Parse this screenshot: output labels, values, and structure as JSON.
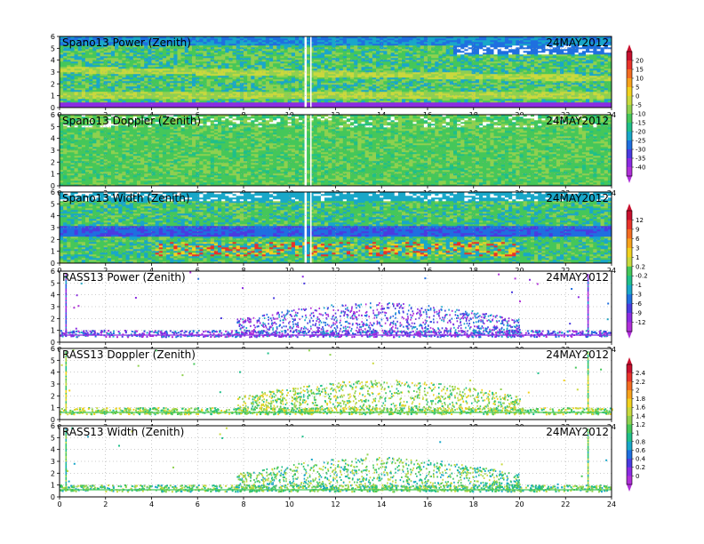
{
  "chart_data": [
    {
      "type": "heatmap",
      "title": "Spano13 Power (Zenith)",
      "date": "24MAY2012",
      "x_range": [
        0,
        24
      ],
      "y_range": [
        0,
        6
      ],
      "x_ticks": [
        "0",
        "2",
        "4",
        "6",
        "8",
        "10",
        "12",
        "14",
        "16",
        "18",
        "20",
        "22",
        "24"
      ],
      "y_ticks": [
        "0",
        "1",
        "2",
        "3",
        "4",
        "5",
        "6"
      ],
      "style": "profiler",
      "colorbar": "A"
    },
    {
      "type": "heatmap",
      "title": "Spano13 Doppler (Zenith)",
      "date": "24MAY2012",
      "x_range": [
        0,
        24
      ],
      "y_range": [
        0,
        6
      ],
      "x_ticks": [
        "0",
        "2",
        "4",
        "6",
        "8",
        "10",
        "12",
        "14",
        "16",
        "18",
        "20",
        "22",
        "24"
      ],
      "y_ticks": [
        "0",
        "1",
        "2",
        "3",
        "4",
        "5",
        "6"
      ],
      "style": "profiler",
      "colorbar": "A"
    },
    {
      "type": "heatmap",
      "title": "Spano13 Width (Zenith)",
      "date": "24MAY2012",
      "x_range": [
        0,
        24
      ],
      "y_range": [
        0,
        6
      ],
      "x_ticks": [
        "0",
        "2",
        "4",
        "6",
        "8",
        "10",
        "12",
        "14",
        "16",
        "18",
        "20",
        "22",
        "24"
      ],
      "y_ticks": [
        "0",
        "1",
        "2",
        "3",
        "4",
        "5",
        "6"
      ],
      "style": "profiler",
      "colorbar": "B"
    },
    {
      "type": "scatter",
      "title": "RASS13 Power (Zenith)",
      "date": "24MAY2012",
      "x_range": [
        0,
        24
      ],
      "y_range": [
        0,
        6
      ],
      "x_ticks": [
        "0",
        "2",
        "4",
        "6",
        "8",
        "10",
        "12",
        "14",
        "16",
        "18",
        "20",
        "22",
        "24"
      ],
      "y_ticks": [
        "0",
        "1",
        "2",
        "3",
        "4",
        "5",
        "6"
      ],
      "style": "rass",
      "colorbar": "B"
    },
    {
      "type": "scatter",
      "title": "RASS13 Doppler (Zenith)",
      "date": "24MAY2012",
      "x_range": [
        0,
        24
      ],
      "y_range": [
        0,
        6
      ],
      "x_ticks": [
        "0",
        "2",
        "4",
        "6",
        "8",
        "10",
        "12",
        "14",
        "16",
        "18",
        "20",
        "22",
        "24"
      ],
      "y_ticks": [
        "0",
        "1",
        "2",
        "3",
        "4",
        "5",
        "6"
      ],
      "style": "rass",
      "colorbar": "C"
    },
    {
      "type": "scatter",
      "title": "RASS13 Width (Zenith)",
      "date": "24MAY2012",
      "x_range": [
        0,
        24
      ],
      "y_range": [
        0,
        6
      ],
      "x_ticks": [
        "0",
        "2",
        "4",
        "6",
        "8",
        "10",
        "12",
        "14",
        "16",
        "18",
        "20",
        "22",
        "24"
      ],
      "y_ticks": [
        "0",
        "1",
        "2",
        "3",
        "4",
        "5",
        "6"
      ],
      "style": "rass",
      "colorbar": "C"
    }
  ],
  "colorbars": {
    "A": {
      "labels": [
        "20",
        "15",
        "10",
        "5",
        "0",
        "-5",
        "-10",
        "-15",
        "-20",
        "-25",
        "-30",
        "-35",
        "-40"
      ],
      "colors": [
        "#c8102e",
        "#e8332a",
        "#f36c21",
        "#f7a21b",
        "#f2d21e",
        "#c9d93d",
        "#8fd14f",
        "#45c75a",
        "#1fbf8a",
        "#19a7c9",
        "#1f6fe0",
        "#4a3be0",
        "#8b2be2",
        "#b030d8"
      ]
    },
    "B": {
      "labels": [
        "12",
        "9",
        "6",
        "3",
        "1",
        "0.2",
        "-0.2",
        "-1",
        "-3",
        "-6",
        "-9",
        "-12"
      ],
      "colors": [
        "#c8102e",
        "#e8332a",
        "#f36c21",
        "#f7a21b",
        "#f2d21e",
        "#c9d93d",
        "#45c75a",
        "#1fbf8a",
        "#19a7c9",
        "#1f6fe0",
        "#4a3be0",
        "#8b2be2",
        "#b030d8"
      ]
    },
    "C": {
      "labels": [
        "2.4",
        "2.2",
        "2",
        "1.8",
        "1.6",
        "1.4",
        "1.2",
        "1",
        "0.8",
        "0.6",
        "0.4",
        "0.2",
        "0"
      ],
      "colors": [
        "#c8102e",
        "#e8332a",
        "#f36c21",
        "#f7a21b",
        "#f2d21e",
        "#c9d93d",
        "#8fd14f",
        "#45c75a",
        "#1fbf8a",
        "#19a7c9",
        "#1f6fe0",
        "#4a3be0",
        "#8b2be2",
        "#b030d8"
      ]
    }
  }
}
